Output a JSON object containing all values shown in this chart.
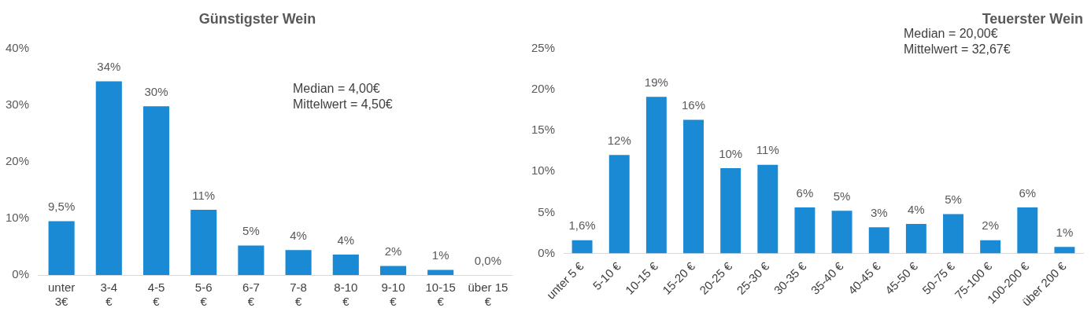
{
  "chart_data": [
    {
      "type": "bar",
      "title": "Günstigster Wein",
      "categories": [
        "unter 3€",
        "3-4 €",
        "4-5 €",
        "5-6 €",
        "6-7 €",
        "7-8 €",
        "8-10 €",
        "9-10 €",
        "10-15 €",
        "über 15 €"
      ],
      "values": [
        9.5,
        34.2,
        29.8,
        11.5,
        5.2,
        4.4,
        3.6,
        1.6,
        0.9,
        0.0
      ],
      "value_labels": [
        "9,5%",
        "34%",
        "30%",
        "11%",
        "5%",
        "4%",
        "4%",
        "2%",
        "1%",
        "0,0%"
      ],
      "color": "#1a8ad4",
      "ylim": [
        0,
        40
      ],
      "yticks": [
        {
          "value": 0,
          "label": "0%"
        },
        {
          "value": 10,
          "label": "10%"
        },
        {
          "value": 20,
          "label": "20%"
        },
        {
          "value": 30,
          "label": "30%"
        },
        {
          "value": 40,
          "label": "40%"
        }
      ],
      "annotations": [
        "Median = 4,00€",
        "Mittelwert = 4,50€"
      ],
      "grid": false,
      "legend": false
    },
    {
      "type": "bar",
      "title": "Teuerster Wein",
      "categories": [
        "unter 5 €",
        "5-10 €",
        "10-15 €",
        "15-20 €",
        "20-25 €",
        "25-30 €",
        "30-35 €",
        "35-40 €",
        "40-45 €",
        "45-50 €",
        "50-75 €",
        "75-100 €",
        "100-200 €",
        "über 200 €"
      ],
      "values": [
        1.6,
        12.0,
        19.1,
        16.3,
        10.4,
        10.8,
        5.6,
        5.2,
        3.2,
        3.6,
        4.8,
        1.6,
        5.6,
        0.8
      ],
      "value_labels": [
        "1,6%",
        "12%",
        "19%",
        "16%",
        "10%",
        "11%",
        "6%",
        "5%",
        "3%",
        "4%",
        "5%",
        "2%",
        "6%",
        "1%"
      ],
      "color": "#1a8ad4",
      "ylim": [
        0,
        25
      ],
      "yticks": [
        {
          "value": 0,
          "label": "0%"
        },
        {
          "value": 5,
          "label": "5%"
        },
        {
          "value": 10,
          "label": "10%"
        },
        {
          "value": 15,
          "label": "15%"
        },
        {
          "value": 20,
          "label": "20%"
        },
        {
          "value": 25,
          "label": "25%"
        }
      ],
      "annotations": [
        "Median = 20,00€",
        "Mittelwert = 32,67€"
      ],
      "grid": false,
      "legend": false
    }
  ]
}
